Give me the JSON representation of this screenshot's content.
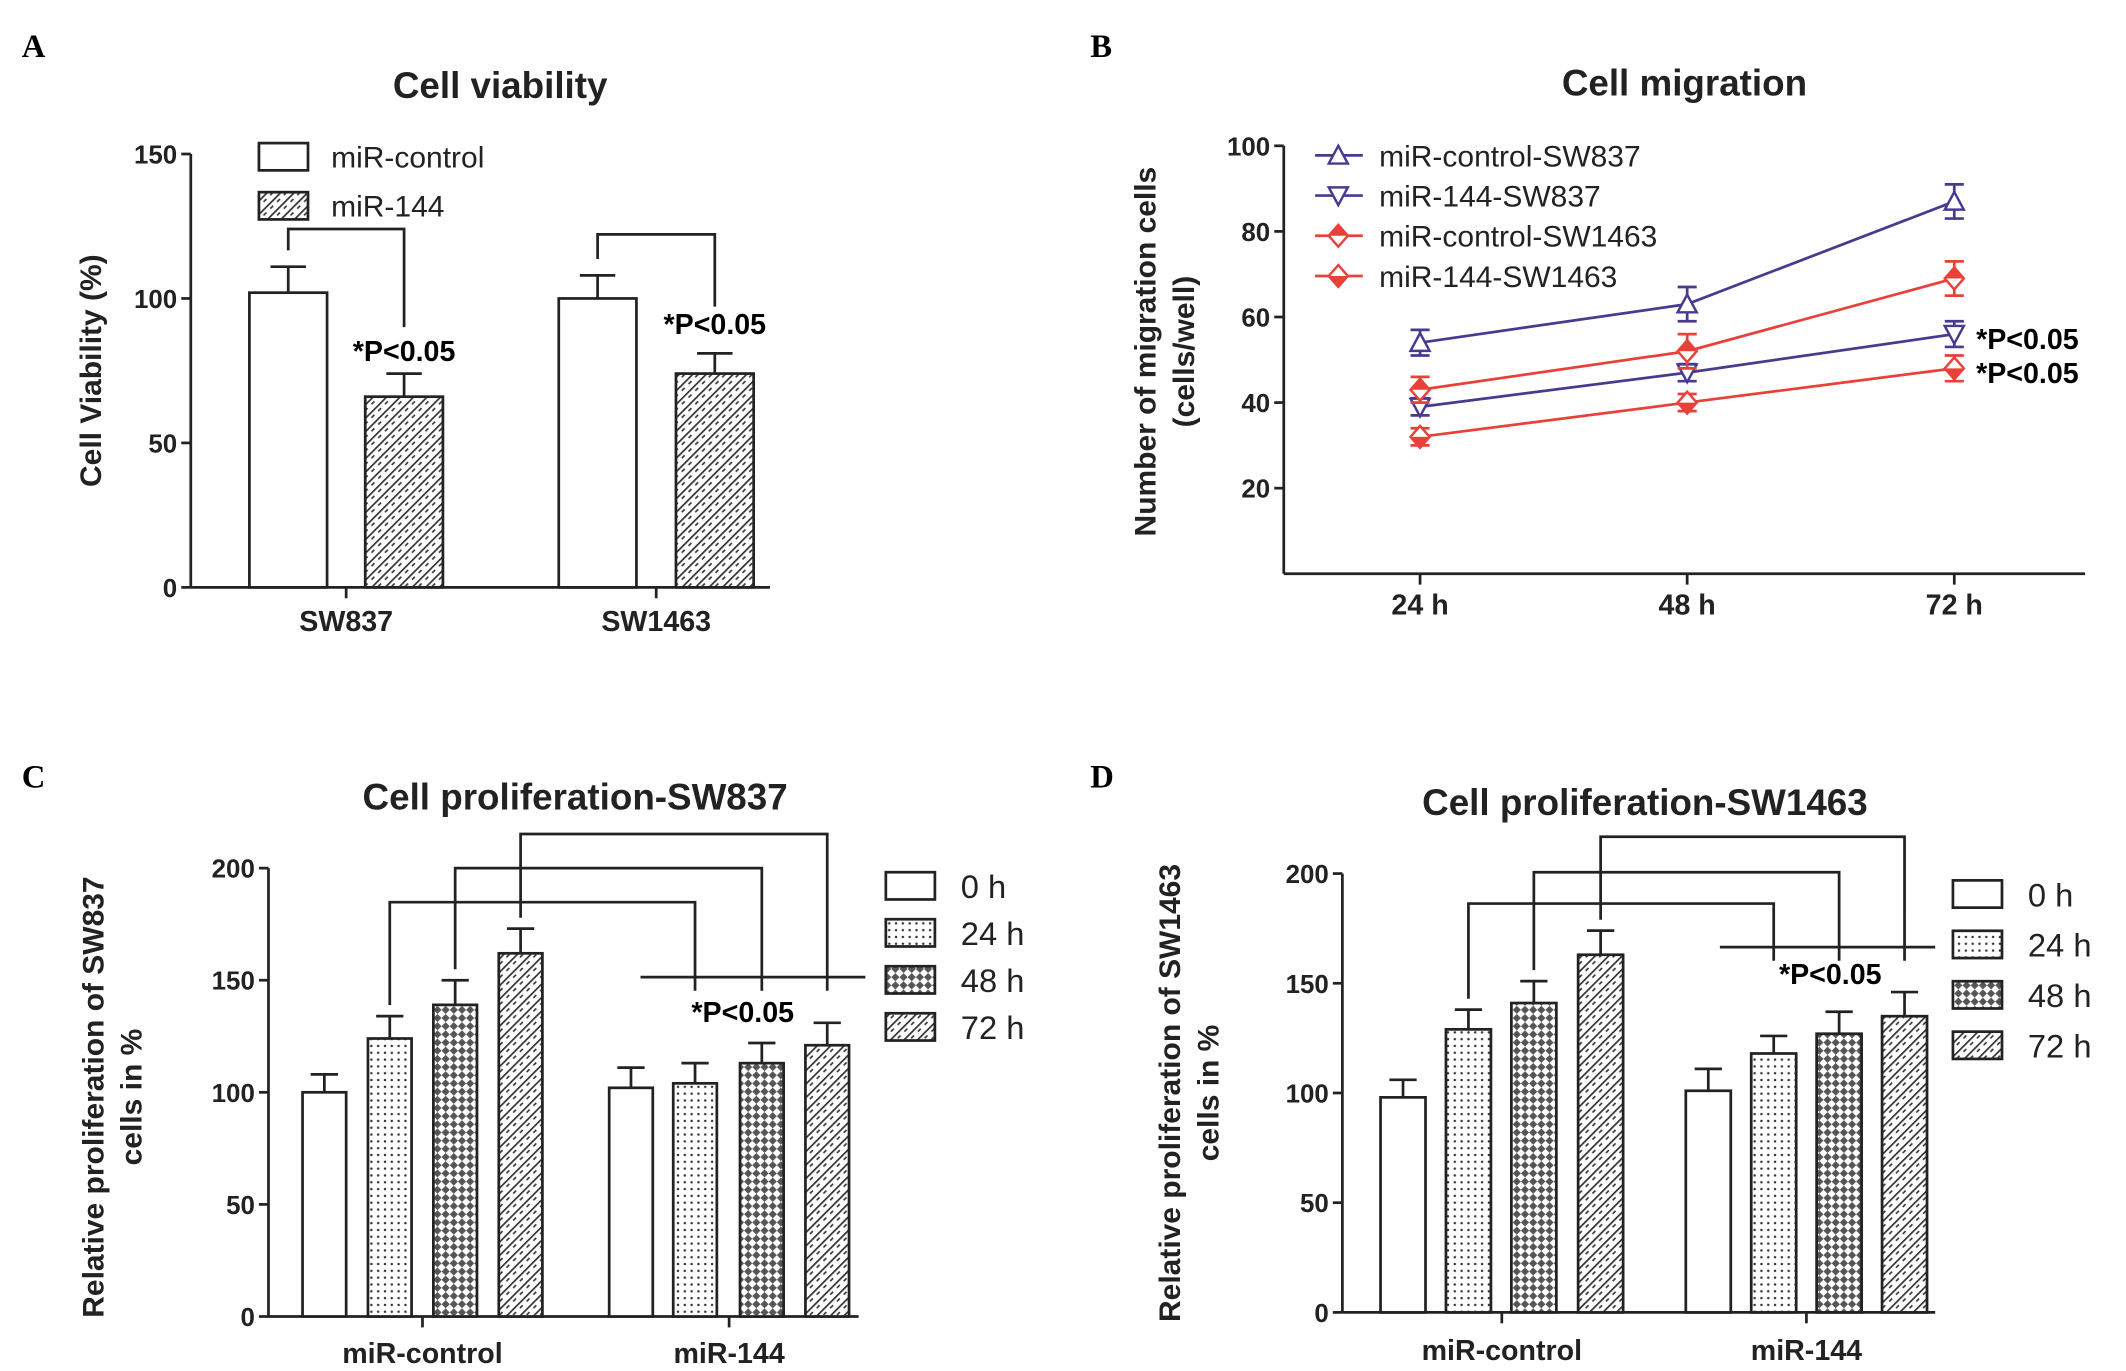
{
  "panel_labels": [
    "A",
    "B",
    "C",
    "D"
  ],
  "colors": {
    "purple": "#4a3a8f",
    "red": "#e8413a",
    "axis": "#222222"
  },
  "chart_data": [
    {
      "type": "bar",
      "title": "Cell viability",
      "ylabel": "Cell Viability (%)",
      "xlabel": "",
      "ylim": [
        0,
        150
      ],
      "yticks": [
        0,
        50,
        100,
        150
      ],
      "categories": [
        "SW837",
        "SW1463"
      ],
      "series": [
        {
          "name": "miR-control",
          "fill": "white",
          "values": [
            102,
            100
          ],
          "errors": [
            9,
            8
          ]
        },
        {
          "name": "miR-144",
          "fill": "hatch",
          "values": [
            66,
            74
          ],
          "errors": [
            8,
            7
          ]
        }
      ],
      "annotations": [
        "*P<0.05",
        "*P<0.05"
      ],
      "legend": "top-left"
    },
    {
      "type": "line",
      "title": "Cell migration",
      "ylabel": "Number of migration cells (cells/well)",
      "xlabel": "",
      "ylim": [
        0,
        100
      ],
      "yticks": [
        20,
        40,
        60,
        80,
        100
      ],
      "categories": [
        "24 h",
        "48 h",
        "72 h"
      ],
      "series": [
        {
          "name": "miR-control-SW837",
          "color": "#4a3a8f",
          "marker": "triangle-up",
          "values": [
            54,
            63,
            87
          ],
          "errors": [
            3,
            4,
            4
          ]
        },
        {
          "name": "miR-144-SW837",
          "color": "#4a3a8f",
          "marker": "triangle-down",
          "values": [
            39,
            47,
            56
          ],
          "errors": [
            2,
            2,
            3
          ]
        },
        {
          "name": "miR-control-SW1463",
          "color": "#e8413a",
          "marker": "diamond",
          "values": [
            43,
            52,
            69
          ],
          "errors": [
            3,
            4,
            4
          ]
        },
        {
          "name": "miR-144-SW1463",
          "color": "#e8413a",
          "marker": "diamond",
          "values": [
            32,
            40,
            48
          ],
          "errors": [
            2,
            2,
            3
          ]
        }
      ],
      "annotations": [
        "*P<0.05",
        "*P<0.05"
      ],
      "legend": "top-left"
    },
    {
      "type": "bar",
      "title": "Cell proliferation-SW837",
      "ylabel": "Relative proliferation of SW837 cells in %",
      "xlabel": "",
      "ylim": [
        0,
        200
      ],
      "yticks": [
        0,
        50,
        100,
        150,
        200
      ],
      "categories": [
        "miR-control",
        "miR-144"
      ],
      "series": [
        {
          "name": "0 h",
          "fill": "white",
          "values": [
            100,
            102
          ],
          "errors": [
            8,
            9
          ]
        },
        {
          "name": "24 h",
          "fill": "dots",
          "values": [
            124,
            104
          ],
          "errors": [
            10,
            9
          ]
        },
        {
          "name": "48 h",
          "fill": "checker",
          "values": [
            139,
            113
          ],
          "errors": [
            11,
            9
          ]
        },
        {
          "name": "72 h",
          "fill": "hatch",
          "values": [
            162,
            121
          ],
          "errors": [
            11,
            10
          ]
        }
      ],
      "annotations": [
        "*P<0.05"
      ],
      "legend": "right"
    },
    {
      "type": "bar",
      "title": "Cell proliferation-SW1463",
      "ylabel": "Relative proliferation of SW1463 cells in %",
      "xlabel": "",
      "ylim": [
        0,
        200
      ],
      "yticks": [
        0,
        50,
        100,
        150,
        200
      ],
      "categories": [
        "miR-control",
        "miR-144"
      ],
      "series": [
        {
          "name": "0 h",
          "fill": "white",
          "values": [
            98,
            101
          ],
          "errors": [
            8,
            10
          ]
        },
        {
          "name": "24 h",
          "fill": "dots",
          "values": [
            129,
            118
          ],
          "errors": [
            9,
            8
          ]
        },
        {
          "name": "48 h",
          "fill": "checker",
          "values": [
            141,
            127
          ],
          "errors": [
            10,
            10
          ]
        },
        {
          "name": "72 h",
          "fill": "hatch",
          "values": [
            163,
            135
          ],
          "errors": [
            11,
            11
          ]
        }
      ],
      "annotations": [
        "*P<0.05"
      ],
      "legend": "right"
    }
  ]
}
